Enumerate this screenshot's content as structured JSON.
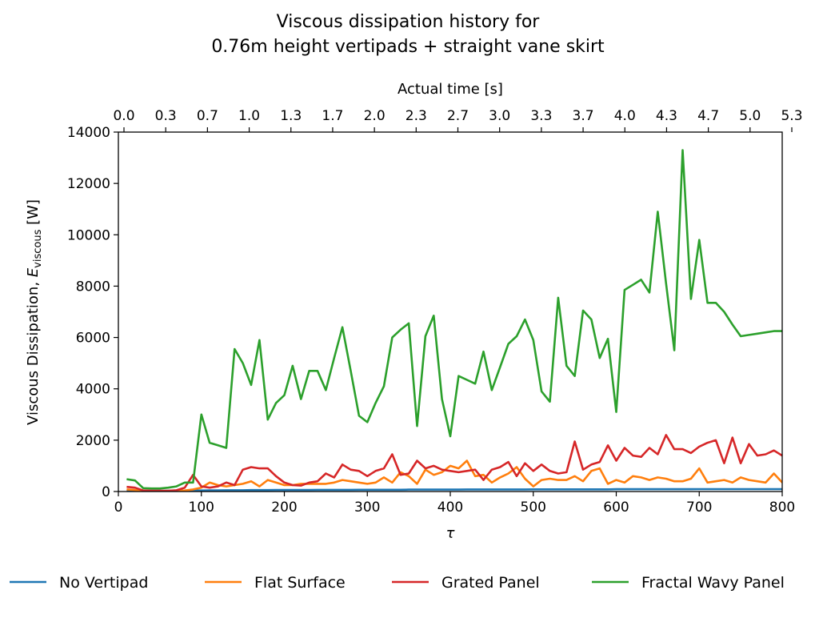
{
  "chart_data": {
    "type": "line",
    "title": [
      "Viscous dissipation history for",
      "0.76m height vertipads + straight vane skirt"
    ],
    "xlabel": "τ",
    "ylabel_main": "Viscous Dissipation, ",
    "ylabel_var": "E",
    "ylabel_sub": "viscous",
    "ylabel_unit": " [W]",
    "top_xlabel": "Actual time [s]",
    "xlim": [
      0,
      800
    ],
    "ylim": [
      0,
      14000
    ],
    "x_ticks": [
      0,
      100,
      200,
      300,
      400,
      500,
      600,
      700,
      800
    ],
    "y_ticks": [
      0,
      2000,
      4000,
      6000,
      8000,
      10000,
      12000,
      14000
    ],
    "top_ticks": [
      "0.0",
      "0.3",
      "0.7",
      "1.0",
      "1.3",
      "1.7",
      "2.0",
      "2.3",
      "2.7",
      "3.0",
      "3.3",
      "3.7",
      "4.0",
      "4.3",
      "4.7",
      "5.0",
      "5.3"
    ],
    "grid": false,
    "legend_placement": "bottom",
    "x": [
      10,
      20,
      30,
      40,
      50,
      60,
      70,
      80,
      90,
      100,
      110,
      120,
      130,
      140,
      150,
      160,
      170,
      180,
      190,
      200,
      210,
      220,
      230,
      240,
      250,
      260,
      270,
      280,
      290,
      300,
      310,
      320,
      330,
      340,
      350,
      360,
      370,
      380,
      390,
      400,
      410,
      420,
      430,
      440,
      450,
      460,
      470,
      480,
      490,
      500,
      510,
      520,
      530,
      540,
      550,
      560,
      570,
      580,
      590,
      600,
      610,
      620,
      630,
      640,
      650,
      660,
      670,
      680,
      690,
      700,
      710,
      720,
      730,
      740,
      750,
      760,
      770,
      780,
      790,
      800
    ],
    "series": [
      {
        "name": "No Vertipad",
        "color": "#1f77b4",
        "values": [
          30,
          30,
          30,
          30,
          30,
          30,
          35,
          35,
          40,
          40,
          45,
          45,
          50,
          50,
          50,
          55,
          55,
          55,
          60,
          60,
          60,
          60,
          60,
          65,
          65,
          65,
          65,
          65,
          70,
          70,
          70,
          70,
          70,
          70,
          75,
          75,
          75,
          75,
          75,
          75,
          75,
          80,
          80,
          80,
          80,
          80,
          80,
          80,
          80,
          85,
          85,
          85,
          85,
          85,
          85,
          85,
          85,
          85,
          85,
          90,
          90,
          90,
          90,
          90,
          90,
          90,
          90,
          90,
          90,
          95,
          95,
          95,
          95,
          95,
          95,
          95,
          95,
          95,
          95,
          95
        ]
      },
      {
        "name": "Flat Surface",
        "color": "#ff7f0e",
        "values": [
          80,
          60,
          20,
          10,
          10,
          10,
          20,
          40,
          80,
          150,
          350,
          250,
          200,
          250,
          300,
          400,
          200,
          450,
          350,
          250,
          250,
          300,
          300,
          300,
          300,
          350,
          450,
          400,
          350,
          300,
          350,
          550,
          350,
          750,
          600,
          300,
          850,
          650,
          750,
          1000,
          900,
          1200,
          600,
          650,
          350,
          550,
          700,
          950,
          500,
          200,
          450,
          500,
          450,
          450,
          600,
          400,
          800,
          900,
          300,
          450,
          350,
          600,
          550,
          450,
          550,
          500,
          400,
          400,
          500,
          900,
          350,
          400,
          450,
          350,
          550,
          450,
          400,
          350,
          700,
          350
        ]
      },
      {
        "name": "Grated Panel",
        "color": "#d62728",
        "values": [
          180,
          150,
          40,
          30,
          30,
          30,
          50,
          150,
          650,
          200,
          150,
          200,
          350,
          250,
          850,
          950,
          900,
          900,
          600,
          350,
          250,
          230,
          350,
          400,
          700,
          550,
          1050,
          850,
          800,
          600,
          800,
          900,
          1450,
          650,
          700,
          1200,
          900,
          1000,
          850,
          800,
          750,
          800,
          850,
          450,
          850,
          950,
          1150,
          600,
          1100,
          800,
          1050,
          800,
          700,
          750,
          1950,
          850,
          1050,
          1150,
          1800,
          1200,
          1700,
          1400,
          1350,
          1700,
          1450,
          2200,
          1650,
          1650,
          1500,
          1750,
          1900,
          2000,
          1100,
          2100,
          1100,
          1850,
          1400,
          1450,
          1600,
          1400
        ]
      },
      {
        "name": "Fractal Wavy Panel",
        "color": "#2ca02c",
        "values": [
          480,
          430,
          130,
          120,
          120,
          150,
          200,
          350,
          350,
          3000,
          1900,
          1800,
          1700,
          5550,
          5000,
          4150,
          5900,
          2800,
          3450,
          3750,
          4900,
          3600,
          4700,
          4700,
          3950,
          5200,
          6400,
          4700,
          2950,
          2700,
          3450,
          4100,
          6000,
          6300,
          6550,
          2550,
          6050,
          6850,
          3600,
          2150,
          4500,
          4350,
          4200,
          5450,
          3950,
          4850,
          5750,
          6050,
          6700,
          5900,
          3900,
          3500,
          7550,
          4900,
          4500,
          7050,
          6700,
          5200,
          5950,
          3100,
          7850,
          8050,
          8250,
          7750,
          10900,
          8100,
          5500,
          13300,
          7500,
          9800,
          7350,
          7350,
          7000,
          6500,
          6050,
          6100,
          6150,
          6200,
          6250,
          6250
        ]
      }
    ]
  }
}
